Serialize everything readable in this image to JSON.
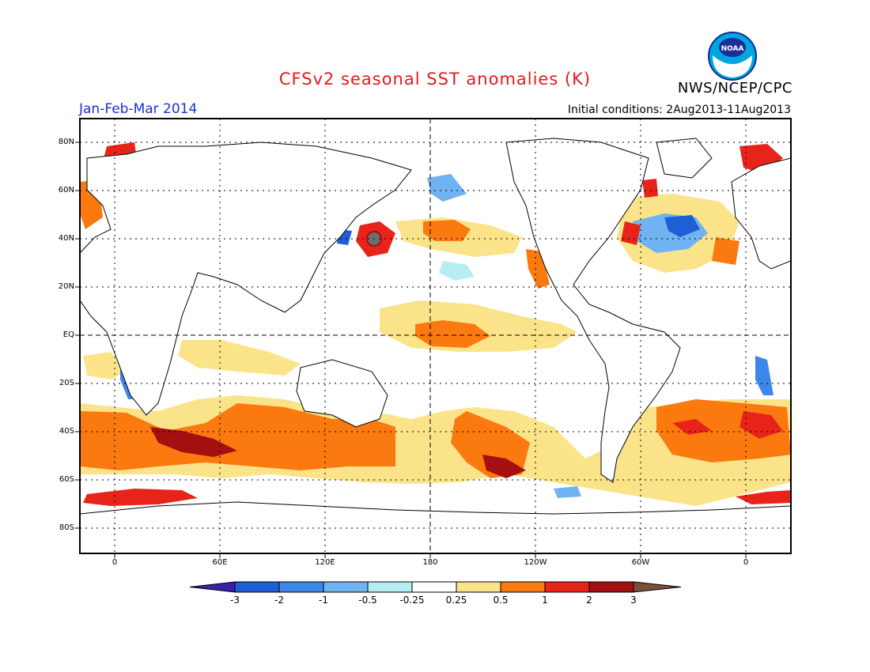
{
  "header": {
    "title": "CFSv2 seasonal SST anomalies (K)",
    "agency": "NWS/NCEP/CPC",
    "period": "Jan-Feb-Mar 2014",
    "initial_conditions": "Initial conditions: 2Aug2013-11Aug2013",
    "logo_text": "NOAA"
  },
  "map": {
    "lat_labels": [
      "80N",
      "60N",
      "40N",
      "20N",
      "EQ",
      "20S",
      "40S",
      "60S",
      "80S"
    ],
    "lon_labels": [
      "0",
      "60E",
      "120E",
      "180",
      "120W",
      "60W",
      "0"
    ]
  },
  "colorbar": {
    "labels": [
      "-3",
      "-2",
      "-1",
      "-0.5",
      "-0.25",
      "0.25",
      "0.5",
      "1",
      "2",
      "3"
    ],
    "colors": [
      "#3a1fa8",
      "#1f5fd6",
      "#3d86ea",
      "#6fb3f2",
      "#b4eef2",
      "#ffffff",
      "#fbe38a",
      "#fb7a10",
      "#e8241a",
      "#a50f0f",
      "#7a4f3a"
    ]
  },
  "colors": {
    "title": "#e8191a",
    "period": "#1b2fd0"
  }
}
